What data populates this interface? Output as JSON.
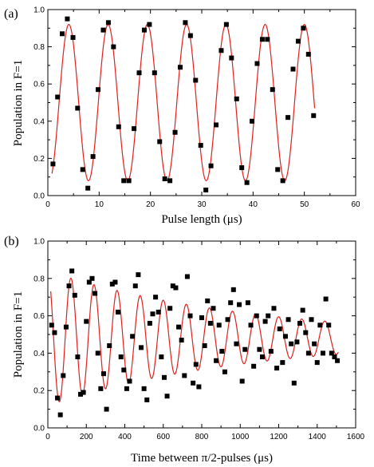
{
  "chart_data": [
    {
      "type": "scatter",
      "panel_label": "(a)",
      "title": "",
      "xlabel": "Pulse length (μs)",
      "ylabel": "Population in F=1",
      "xlim": [
        0,
        60
      ],
      "ylim": [
        0,
        1.0
      ],
      "xticks": [
        "0",
        "10",
        "20",
        "30",
        "40",
        "50",
        "60"
      ],
      "yticks": [
        "0.0",
        "0.2",
        "0.4",
        "0.6",
        "0.8",
        "1.0"
      ],
      "grid": false,
      "marker_color": "#000000",
      "fit_color": "#e0201e",
      "fit": {
        "model": "cosine",
        "offset": 0.5,
        "amplitude": 0.42,
        "period": 7.65,
        "phase_x": 4.1,
        "decay": 0,
        "x_start": 0.8,
        "x_end": 52
      },
      "series": [
        {
          "x": [
            1,
            1.9,
            2.8,
            3.8,
            4.9,
            5.8,
            6.8,
            7.8,
            8.8,
            9.8,
            10.8,
            11.8,
            12.8,
            13.8,
            14.8,
            15.8,
            16.8,
            17.8,
            18.8,
            19.8,
            20.8,
            21.8,
            22.8,
            23.8,
            24.8,
            25.8,
            26.8,
            27.8,
            28.8,
            29.8,
            30.8,
            31.8,
            32.8,
            33.8,
            34.8,
            35.8,
            36.8,
            37.8,
            38.8,
            39.8,
            40.8,
            41.8,
            42.8,
            43.8,
            44.8,
            45.8,
            46.8,
            47.8,
            48.8,
            49.8,
            50.8,
            51.8
          ],
          "y": [
            0.17,
            0.53,
            0.87,
            0.95,
            0.85,
            0.47,
            0.14,
            0.04,
            0.21,
            0.57,
            0.89,
            0.93,
            0.8,
            0.37,
            0.08,
            0.08,
            0.36,
            0.66,
            0.89,
            0.92,
            0.66,
            0.29,
            0.09,
            0.08,
            0.34,
            0.69,
            0.93,
            0.86,
            0.62,
            0.27,
            0.03,
            0.16,
            0.38,
            0.78,
            0.92,
            0.74,
            0.52,
            0.15,
            0.07,
            0.4,
            0.71,
            0.84,
            0.84,
            0.57,
            0.14,
            0.08,
            0.42,
            0.68,
            0.83,
            0.9,
            0.76,
            0.43
          ]
        }
      ]
    },
    {
      "type": "scatter",
      "panel_label": "(b)",
      "title": "",
      "xlabel": "Time between π/2-pulses (μs)",
      "ylabel": "Population in F=1",
      "xlim": [
        0,
        1600
      ],
      "ylim": [
        0,
        1.0
      ],
      "xticks": [
        "0",
        "200",
        "400",
        "600",
        "800",
        "1000",
        "1200",
        "1400",
        "1600"
      ],
      "yticks": [
        "0.0",
        "0.2",
        "0.4",
        "0.6",
        "0.8",
        "1.0"
      ],
      "grid": false,
      "marker_color": "#000000",
      "fit_color": "#e0201e",
      "fit": {
        "model": "cosine",
        "offset": 0.48,
        "amplitude": 0.36,
        "period": 120,
        "phase_x": 120,
        "decay": 0.00095,
        "x_start": 15,
        "x_end": 1510
      },
      "series": [
        {
          "x": [
            20,
            35,
            50,
            65,
            80,
            95,
            110,
            125,
            140,
            155,
            170,
            185,
            200,
            215,
            230,
            245,
            260,
            275,
            290,
            305,
            320,
            335,
            350,
            365,
            380,
            395,
            410,
            425,
            440,
            455,
            470,
            485,
            500,
            515,
            530,
            545,
            560,
            575,
            590,
            605,
            620,
            635,
            650,
            665,
            680,
            695,
            710,
            725,
            740,
            755,
            770,
            785,
            800,
            815,
            830,
            845,
            860,
            875,
            890,
            905,
            920,
            935,
            950,
            965,
            980,
            995,
            1010,
            1025,
            1040,
            1055,
            1070,
            1085,
            1100,
            1115,
            1130,
            1145,
            1160,
            1175,
            1190,
            1205,
            1220,
            1235,
            1250,
            1265,
            1280,
            1295,
            1310,
            1325,
            1340,
            1355,
            1370,
            1385,
            1400,
            1415,
            1430,
            1445,
            1460,
            1475,
            1490,
            1505
          ],
          "y": [
            0.55,
            0.51,
            0.16,
            0.07,
            0.28,
            0.54,
            0.76,
            0.84,
            0.71,
            0.38,
            0.18,
            0.19,
            0.57,
            0.78,
            0.8,
            0.72,
            0.4,
            0.21,
            0.29,
            0.1,
            0.44,
            0.77,
            0.78,
            0.62,
            0.38,
            0.31,
            0.21,
            0.25,
            0.49,
            0.76,
            0.82,
            0.43,
            0.21,
            0.15,
            0.56,
            0.61,
            0.7,
            0.62,
            0.38,
            0.27,
            0.17,
            0.64,
            0.76,
            0.75,
            0.54,
            0.47,
            0.28,
            0.81,
            0.6,
            0.24,
            0.34,
            0.22,
            0.59,
            0.44,
            0.68,
            0.56,
            0.64,
            0.36,
            0.55,
            0.41,
            0.3,
            0.58,
            0.67,
            0.74,
            0.45,
            0.66,
            0.25,
            0.42,
            0.67,
            0.55,
            0.33,
            0.6,
            0.42,
            0.38,
            0.57,
            0.6,
            0.41,
            0.64,
            0.32,
            0.53,
            0.35,
            0.49,
            0.58,
            0.45,
            0.24,
            0.46,
            0.56,
            0.63,
            0.51,
            0.4,
            0.58,
            0.45,
            0.35,
            0.55,
            0.4,
            0.69,
            0.55,
            0.4,
            0.38,
            0.36
          ]
        }
      ]
    }
  ]
}
